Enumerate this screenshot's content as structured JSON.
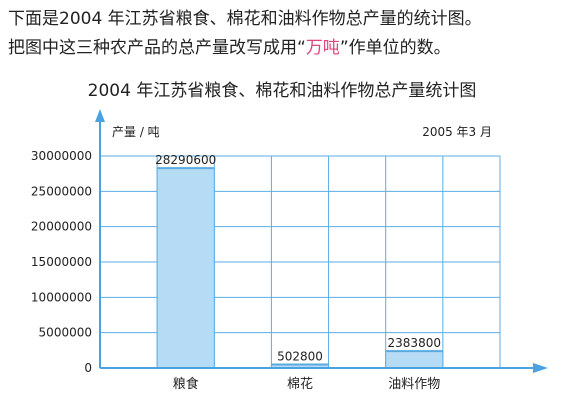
{
  "intro": {
    "line1": "下面是2004 年江苏省粮食、棉花和油料作物总产量的统计图。",
    "line2_before": "把图中这三种农产品的总产量改写成用“",
    "line2_highlight": "万吨",
    "line2_after": "”作单位的数。"
  },
  "colors": {
    "bar_fill": "#b5dcf4",
    "bar_top": "#5aa9e0",
    "grid": "#5aaee6",
    "axis": "#4aa3e0",
    "highlight": "#e0457b"
  },
  "chart_data": {
    "type": "bar",
    "title": "2004 年江苏省粮食、棉花和油料作物总产量统计图",
    "date_note": "2005 年3 月",
    "ylabel": "产量 / 吨",
    "xlabel": "",
    "categories": [
      "粮食",
      "棉花",
      "油料作物"
    ],
    "values": [
      28290600,
      502800,
      2383800
    ],
    "value_labels": [
      "28290600",
      "502800",
      "2383800"
    ],
    "ylim": [
      0,
      30000000
    ],
    "yticks": [
      0,
      5000000,
      10000000,
      15000000,
      20000000,
      25000000,
      30000000
    ],
    "ytick_labels": [
      "0",
      "5000000",
      "10000000",
      "15000000",
      "20000000",
      "25000000",
      "30000000"
    ],
    "grid": true,
    "legend": "none"
  }
}
